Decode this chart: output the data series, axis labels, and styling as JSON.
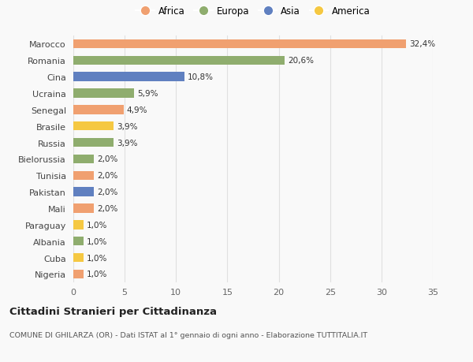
{
  "countries": [
    "Nigeria",
    "Cuba",
    "Albania",
    "Paraguay",
    "Mali",
    "Pakistan",
    "Tunisia",
    "Bielorussia",
    "Russia",
    "Brasile",
    "Senegal",
    "Ucraina",
    "Cina",
    "Romania",
    "Marocco"
  ],
  "values": [
    1.0,
    1.0,
    1.0,
    1.0,
    2.0,
    2.0,
    2.0,
    2.0,
    3.9,
    3.9,
    4.9,
    5.9,
    10.8,
    20.6,
    32.4
  ],
  "labels": [
    "1,0%",
    "1,0%",
    "1,0%",
    "1,0%",
    "2,0%",
    "2,0%",
    "2,0%",
    "2,0%",
    "3,9%",
    "3,9%",
    "4,9%",
    "5,9%",
    "10,8%",
    "20,6%",
    "32,4%"
  ],
  "colors": [
    "#f0a070",
    "#f5c842",
    "#8fad6e",
    "#f5c842",
    "#f0a070",
    "#6080c0",
    "#f0a070",
    "#8fad6e",
    "#8fad6e",
    "#f5c842",
    "#f0a070",
    "#8fad6e",
    "#6080c0",
    "#8fad6e",
    "#f0a070"
  ],
  "legend_labels": [
    "Africa",
    "Europa",
    "Asia",
    "America"
  ],
  "legend_colors": [
    "#f0a070",
    "#8fad6e",
    "#6080c0",
    "#f5c842"
  ],
  "title": "Cittadini Stranieri per Cittadinanza",
  "subtitle": "COMUNE DI GHILARZA (OR) - Dati ISTAT al 1° gennaio di ogni anno - Elaborazione TUTTITALIA.IT",
  "xlim": [
    0,
    35
  ],
  "xticks": [
    0,
    5,
    10,
    15,
    20,
    25,
    30,
    35
  ],
  "background_color": "#f9f9f9",
  "grid_color": "#e0e0e0"
}
